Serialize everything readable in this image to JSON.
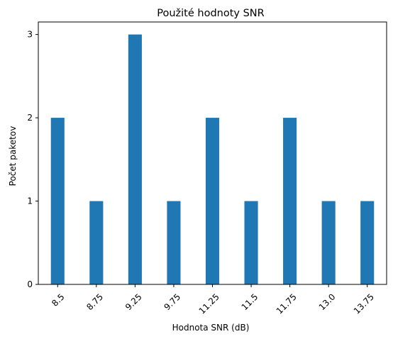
{
  "chart_data": {
    "type": "bar",
    "title": "Použité hodnoty SNR",
    "xlabel": "Hodnota SNR (dB)",
    "ylabel": "Počet paketov",
    "categories": [
      "8.5",
      "8.75",
      "9.25",
      "9.75",
      "11.25",
      "11.5",
      "11.75",
      "13.0",
      "13.75"
    ],
    "values": [
      2,
      1,
      3,
      1,
      2,
      1,
      2,
      1,
      1
    ],
    "ylim": [
      0,
      3.15
    ],
    "yticks": [
      0,
      1,
      2,
      3
    ],
    "grid": false,
    "bar_color": "#1f77b4"
  }
}
